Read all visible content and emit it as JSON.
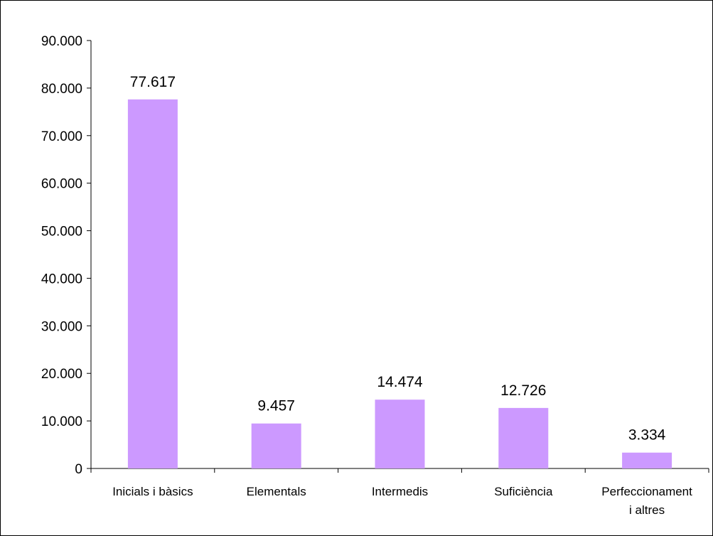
{
  "chart_data": {
    "type": "bar",
    "categories": [
      [
        "Inicials i bàsics"
      ],
      [
        "Elementals"
      ],
      [
        "Intermedis"
      ],
      [
        "Suficiència"
      ],
      [
        "Perfeccionament",
        "i altres"
      ]
    ],
    "values": [
      77617,
      9457,
      14474,
      12726,
      3334
    ],
    "data_labels": [
      "77.617",
      "9.457",
      "14.474",
      "12.726",
      "3.334"
    ],
    "y_ticks": [
      0,
      10000,
      20000,
      30000,
      40000,
      50000,
      60000,
      70000,
      80000,
      90000
    ],
    "y_tick_labels": [
      "0",
      "10.000",
      "20.000",
      "30.000",
      "40.000",
      "50.000",
      "60.000",
      "70.000",
      "80.000",
      "90.000"
    ],
    "ylim": [
      0,
      90000
    ],
    "grid": false,
    "legend": "none",
    "bar_color": "#cc99ff"
  }
}
